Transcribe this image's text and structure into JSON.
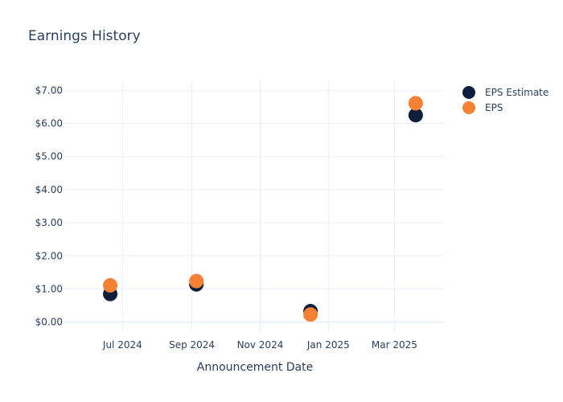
{
  "chart_data": {
    "type": "scatter",
    "title": "Earnings History",
    "xlabel": "Announcement Date",
    "ylabel": "",
    "x_ticks": [
      {
        "label": "Jul 2024",
        "date": "2024-07-01"
      },
      {
        "label": "Sep 2024",
        "date": "2024-09-01"
      },
      {
        "label": "Nov 2024",
        "date": "2024-11-01"
      },
      {
        "label": "Jan 2025",
        "date": "2025-01-01"
      },
      {
        "label": "Mar 2025",
        "date": "2025-03-01"
      }
    ],
    "xlim": [
      "2024-05-10",
      "2025-04-15"
    ],
    "y_ticks": [
      0,
      1,
      2,
      3,
      4,
      5,
      6,
      7
    ],
    "y_tick_labels": [
      "$0.00",
      "$1.00",
      "$2.00",
      "$3.00",
      "$4.00",
      "$5.00",
      "$6.00",
      "$7.00"
    ],
    "ylim": [
      -0.3,
      7.3
    ],
    "grid": true,
    "legend_position": "top-right",
    "series": [
      {
        "name": "EPS Estimate",
        "color": "#0d1f3c",
        "points": [
          {
            "date": "2024-06-20",
            "value": 0.85
          },
          {
            "date": "2024-09-05",
            "value": 1.14
          },
          {
            "date": "2024-12-16",
            "value": 0.33
          },
          {
            "date": "2025-03-20",
            "value": 6.25
          }
        ]
      },
      {
        "name": "EPS",
        "color": "#f58134",
        "points": [
          {
            "date": "2024-06-20",
            "value": 1.11
          },
          {
            "date": "2024-09-05",
            "value": 1.24
          },
          {
            "date": "2024-12-16",
            "value": 0.23
          },
          {
            "date": "2025-03-20",
            "value": 6.61
          }
        ]
      }
    ]
  }
}
